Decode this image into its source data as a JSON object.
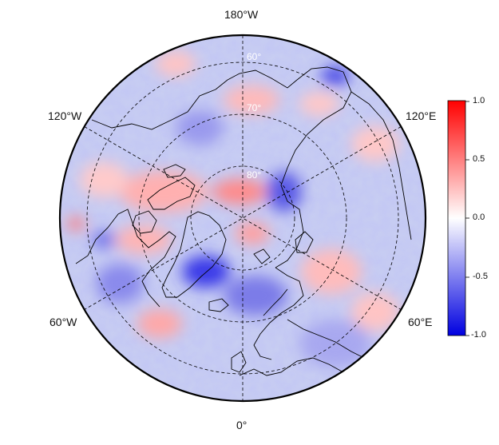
{
  "map": {
    "projection": "north-polar-stereographic",
    "longitude_labels": {
      "top": "180°W",
      "upper_left": "120°W",
      "upper_right": "120°E",
      "lower_left": "60°W",
      "lower_right": "60°E",
      "bottom": "0°"
    },
    "latitude_labels": [
      "60°",
      "70°",
      "80°"
    ],
    "colors": {
      "negative": "#0000e0",
      "zero": "#ffffff",
      "positive": "#ff0000",
      "coast": "#000000"
    }
  },
  "colorbar": {
    "min": -1.0,
    "max": 1.0,
    "tick_labels": [
      "1.0",
      "0.5",
      "0.0",
      "-0.5",
      "-1.0"
    ],
    "tick_values": [
      1.0,
      0.5,
      0.0,
      -0.5,
      -1.0
    ]
  }
}
